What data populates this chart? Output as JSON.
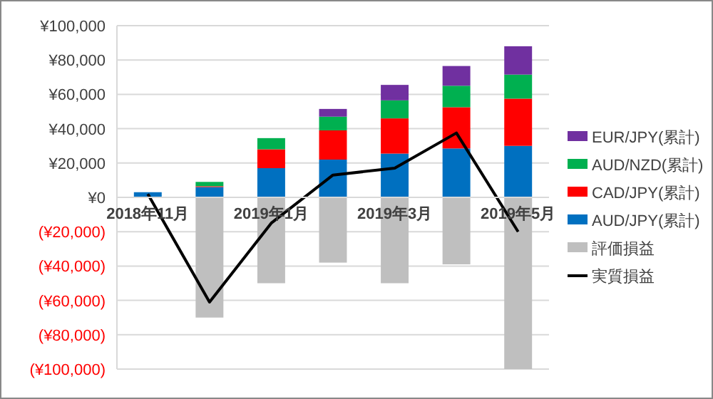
{
  "chart_data": {
    "type": "bar",
    "stacked": true,
    "categories": [
      "2018年11月",
      null,
      "2019年1月",
      null,
      "2019年3月",
      null,
      "2019年5月"
    ],
    "series": [
      {
        "name": "AUD/JPY(累計)",
        "color": "#0070c0",
        "values": [
          3000,
          6000,
          17000,
          22000,
          25500,
          28500,
          30000
        ]
      },
      {
        "name": "CAD/JPY(累計)",
        "color": "#ff0000",
        "values": [
          0,
          500,
          11000,
          17000,
          20500,
          24000,
          27500
        ]
      },
      {
        "name": "AUD/NZD(累計)",
        "color": "#00b050",
        "values": [
          0,
          2500,
          6500,
          8000,
          10500,
          12500,
          14000
        ]
      },
      {
        "name": "EUR/JPY(累計)",
        "color": "#7030a0",
        "values": [
          0,
          0,
          0,
          4500,
          9000,
          11500,
          16500
        ]
      },
      {
        "name": "評価損益",
        "color": "#bfbfbf",
        "values": [
          0,
          -70000,
          -50000,
          -38000,
          -50000,
          -39000,
          -100000
        ]
      },
      {
        "name": "実質損益",
        "color": "#000000",
        "type": "line",
        "values": [
          2000,
          -61000,
          -15000,
          13000,
          17000,
          37500,
          -20000
        ]
      }
    ],
    "ylim": [
      -100000,
      100000
    ],
    "yticks": [
      {
        "value": -100000,
        "label": "(¥100,000)"
      },
      {
        "value": -80000,
        "label": "(¥80,000)"
      },
      {
        "value": -60000,
        "label": "(¥60,000)"
      },
      {
        "value": -40000,
        "label": "(¥40,000)"
      },
      {
        "value": -20000,
        "label": "(¥20,000)"
      },
      {
        "value": 0,
        "label": "¥0"
      },
      {
        "value": 20000,
        "label": "¥20,000"
      },
      {
        "value": 40000,
        "label": "¥40,000"
      },
      {
        "value": 60000,
        "label": "¥60,000"
      },
      {
        "value": 80000,
        "label": "¥80,000"
      },
      {
        "value": 100000,
        "label": "¥100,000"
      }
    ],
    "grid": "y",
    "legend": "right"
  }
}
